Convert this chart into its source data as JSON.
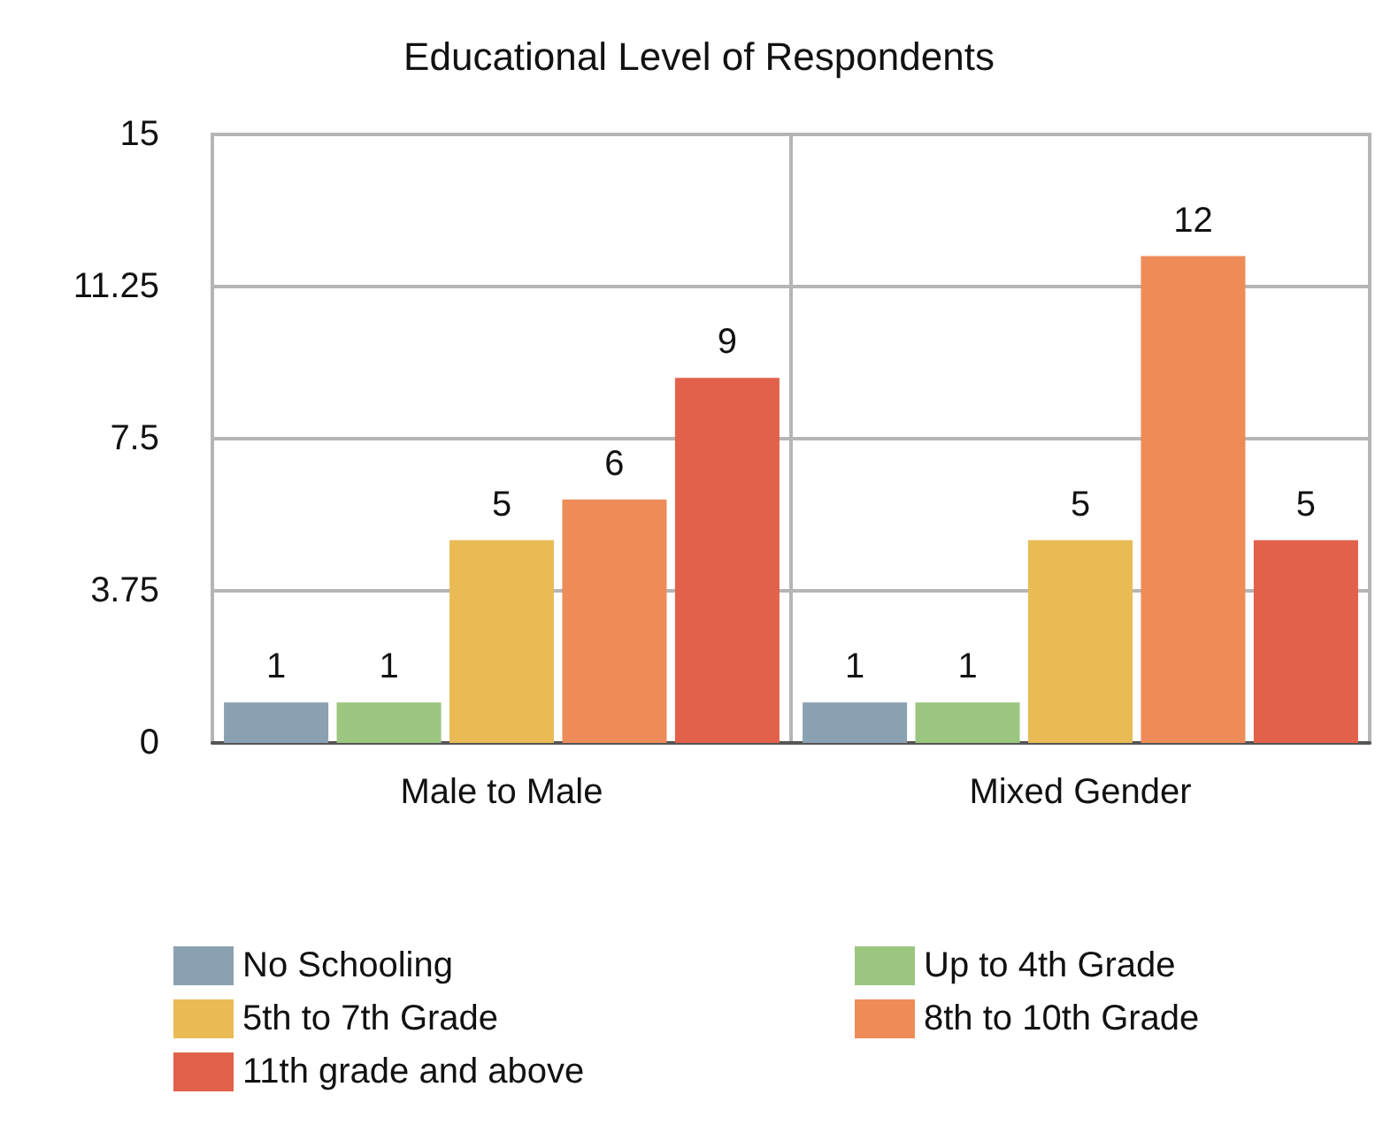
{
  "chart_data": {
    "type": "bar",
    "title": "Educational Level of Respondents",
    "categories": [
      "Male to Male",
      "Mixed Gender"
    ],
    "series": [
      {
        "name": "No Schooling",
        "color": "#8aa1b2",
        "values": [
          1,
          1
        ]
      },
      {
        "name": "Up to 4th Grade",
        "color": "#9cc680",
        "values": [
          1,
          1
        ]
      },
      {
        "name": "5th to 7th Grade",
        "color": "#e8bb55",
        "values": [
          5,
          5
        ]
      },
      {
        "name": "8th to 10th Grade",
        "color": "#ed8c58",
        "values": [
          6,
          12
        ]
      },
      {
        "name": "11th grade and above",
        "color": "#e1614b",
        "values": [
          9,
          5
        ]
      }
    ],
    "ylim": [
      0,
      15
    ],
    "yticks": [
      0,
      3.75,
      7.5,
      11.25,
      15
    ],
    "grid": true,
    "legend": "bottom",
    "data_labels": true
  }
}
